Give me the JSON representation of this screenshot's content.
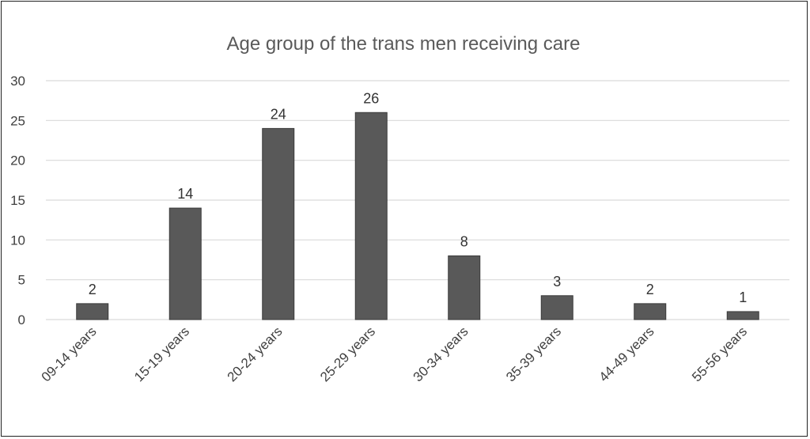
{
  "chart_data": {
    "type": "bar",
    "title": "Age group of the trans men receiving care",
    "xlabel": "",
    "ylabel": "",
    "categories": [
      "09-14 years",
      "15-19 years",
      "20-24 years",
      "25-29 years",
      "30-34 years",
      "35-39 years",
      "44-49 years",
      "55-56 years"
    ],
    "values": [
      2,
      14,
      24,
      26,
      8,
      3,
      2,
      1
    ],
    "ylim": [
      0,
      30
    ],
    "yticks": [
      0,
      5,
      10,
      15,
      20,
      25,
      30
    ],
    "grid": true,
    "legend": "none",
    "colors": {
      "bar": "#595959",
      "bar_edge": "#3a3a3a",
      "grid": "#d9d9d9",
      "axis_text": "#404040",
      "title": "#5a5a5a",
      "label": "#333333"
    }
  }
}
